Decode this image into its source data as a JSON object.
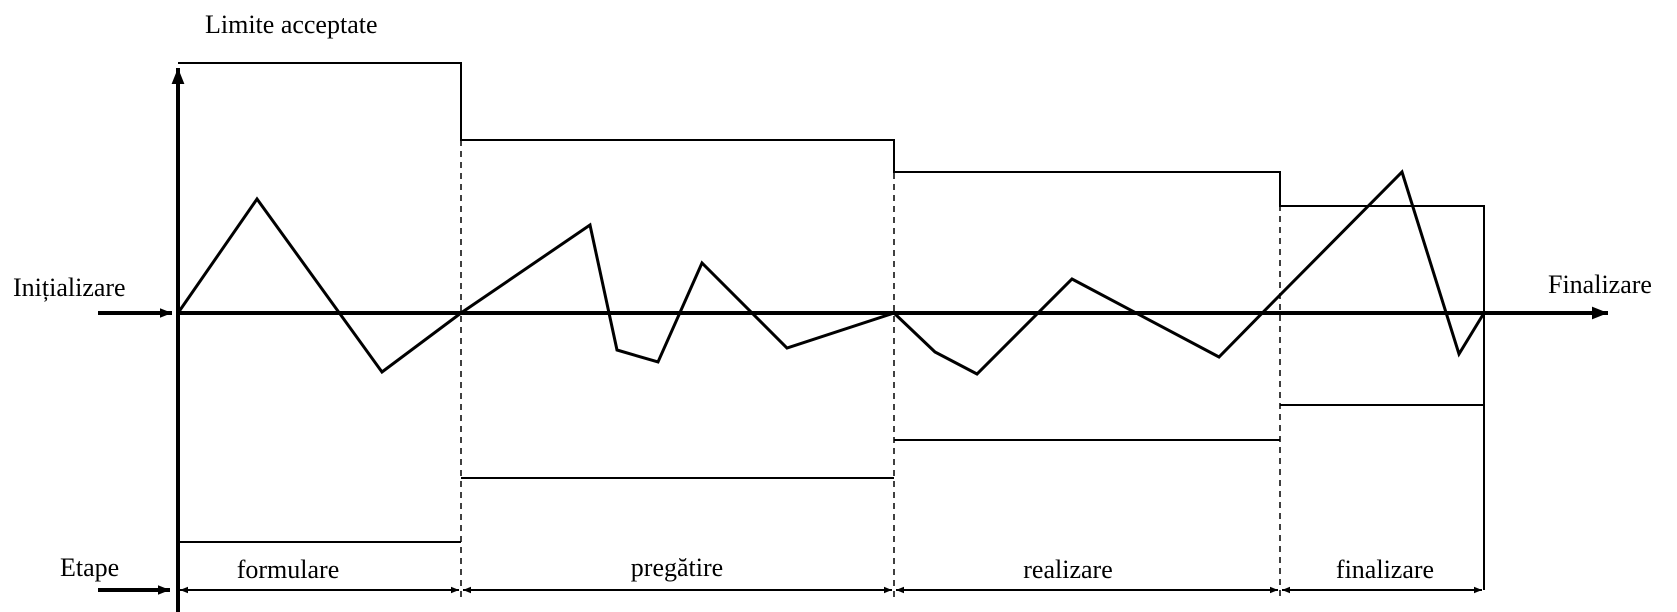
{
  "labels": {
    "y_axis": "Limite acceptate",
    "start": "Inițializare",
    "end": "Finalizare",
    "stages_axis": "Etape"
  },
  "stages": [
    {
      "name": "formulare"
    },
    {
      "name": "pregătire"
    },
    {
      "name": "realizare"
    },
    {
      "name": "finalizare"
    }
  ],
  "colors": {
    "stroke": "#000000",
    "background": "#ffffff"
  }
}
